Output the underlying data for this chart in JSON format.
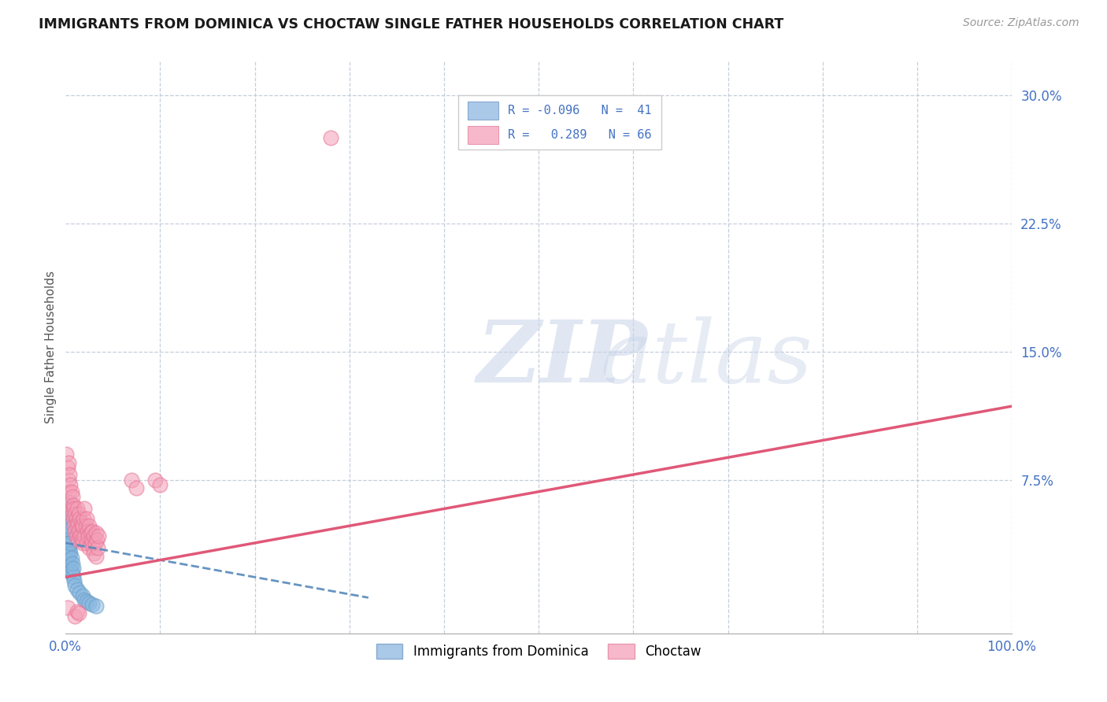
{
  "title": "IMMIGRANTS FROM DOMINICA VS CHOCTAW SINGLE FATHER HOUSEHOLDS CORRELATION CHART",
  "source": "Source: ZipAtlas.com",
  "ylabel": "Single Father Households",
  "xlim": [
    0,
    1.0
  ],
  "ylim": [
    -0.015,
    0.32
  ],
  "color_blue": "#89b8e0",
  "color_blue_edge": "#6a9ec8",
  "color_pink": "#f4a0b8",
  "color_pink_edge": "#e87898",
  "color_blue_line": "#5588bb",
  "color_pink_line": "#e05878",
  "blue_scatter": [
    [
      0.001,
      0.045
    ],
    [
      0.001,
      0.052
    ],
    [
      0.001,
      0.058
    ],
    [
      0.001,
      0.063
    ],
    [
      0.001,
      0.038
    ],
    [
      0.001,
      0.042
    ],
    [
      0.002,
      0.048
    ],
    [
      0.002,
      0.035
    ],
    [
      0.002,
      0.04
    ],
    [
      0.002,
      0.044
    ],
    [
      0.002,
      0.05
    ],
    [
      0.002,
      0.055
    ],
    [
      0.003,
      0.032
    ],
    [
      0.003,
      0.038
    ],
    [
      0.003,
      0.043
    ],
    [
      0.003,
      0.048
    ],
    [
      0.003,
      0.03
    ],
    [
      0.003,
      0.036
    ],
    [
      0.004,
      0.028
    ],
    [
      0.004,
      0.034
    ],
    [
      0.004,
      0.04
    ],
    [
      0.004,
      0.046
    ],
    [
      0.005,
      0.025
    ],
    [
      0.005,
      0.032
    ],
    [
      0.005,
      0.038
    ],
    [
      0.006,
      0.022
    ],
    [
      0.006,
      0.029
    ],
    [
      0.007,
      0.02
    ],
    [
      0.007,
      0.026
    ],
    [
      0.008,
      0.018
    ],
    [
      0.008,
      0.023
    ],
    [
      0.009,
      0.016
    ],
    [
      0.01,
      0.013
    ],
    [
      0.012,
      0.011
    ],
    [
      0.015,
      0.009
    ],
    [
      0.018,
      0.007
    ],
    [
      0.02,
      0.005
    ],
    [
      0.022,
      0.004
    ],
    [
      0.025,
      0.003
    ],
    [
      0.028,
      0.002
    ],
    [
      0.032,
      0.001
    ]
  ],
  "pink_scatter": [
    [
      0.001,
      0.09
    ],
    [
      0.002,
      0.082
    ],
    [
      0.003,
      0.085
    ],
    [
      0.003,
      0.075
    ],
    [
      0.004,
      0.078
    ],
    [
      0.004,
      0.068
    ],
    [
      0.005,
      0.072
    ],
    [
      0.005,
      0.062
    ],
    [
      0.006,
      0.068
    ],
    [
      0.006,
      0.058
    ],
    [
      0.007,
      0.065
    ],
    [
      0.007,
      0.055
    ],
    [
      0.008,
      0.06
    ],
    [
      0.008,
      0.052
    ],
    [
      0.009,
      0.058
    ],
    [
      0.009,
      0.048
    ],
    [
      0.01,
      0.055
    ],
    [
      0.01,
      0.045
    ],
    [
      0.011,
      0.052
    ],
    [
      0.011,
      0.042
    ],
    [
      0.012,
      0.058
    ],
    [
      0.012,
      0.048
    ],
    [
      0.013,
      0.05
    ],
    [
      0.013,
      0.04
    ],
    [
      0.014,
      0.055
    ],
    [
      0.014,
      0.045
    ],
    [
      0.015,
      0.052
    ],
    [
      0.015,
      0.042
    ],
    [
      0.016,
      0.05
    ],
    [
      0.016,
      0.042
    ],
    [
      0.017,
      0.048
    ],
    [
      0.017,
      0.04
    ],
    [
      0.018,
      0.048
    ],
    [
      0.018,
      0.038
    ],
    [
      0.019,
      0.052
    ],
    [
      0.02,
      0.058
    ],
    [
      0.02,
      0.042
    ],
    [
      0.021,
      0.048
    ],
    [
      0.022,
      0.052
    ],
    [
      0.022,
      0.038
    ],
    [
      0.023,
      0.045
    ],
    [
      0.024,
      0.042
    ],
    [
      0.025,
      0.048
    ],
    [
      0.025,
      0.035
    ],
    [
      0.026,
      0.044
    ],
    [
      0.027,
      0.04
    ],
    [
      0.028,
      0.045
    ],
    [
      0.028,
      0.038
    ],
    [
      0.029,
      0.035
    ],
    [
      0.03,
      0.042
    ],
    [
      0.03,
      0.032
    ],
    [
      0.031,
      0.038
    ],
    [
      0.032,
      0.044
    ],
    [
      0.032,
      0.03
    ],
    [
      0.033,
      0.04
    ],
    [
      0.034,
      0.035
    ],
    [
      0.035,
      0.042
    ],
    [
      0.07,
      0.075
    ],
    [
      0.075,
      0.07
    ],
    [
      0.28,
      0.275
    ],
    [
      0.095,
      0.075
    ],
    [
      0.1,
      0.072
    ],
    [
      0.002,
      0.0
    ],
    [
      0.01,
      -0.005
    ],
    [
      0.012,
      -0.002
    ],
    [
      0.014,
      -0.003
    ]
  ],
  "pink_line_x": [
    0.0,
    1.0
  ],
  "pink_line_y": [
    0.018,
    0.118
  ],
  "blue_line_x": [
    0.0,
    0.32
  ],
  "blue_line_y": [
    0.038,
    0.006
  ]
}
